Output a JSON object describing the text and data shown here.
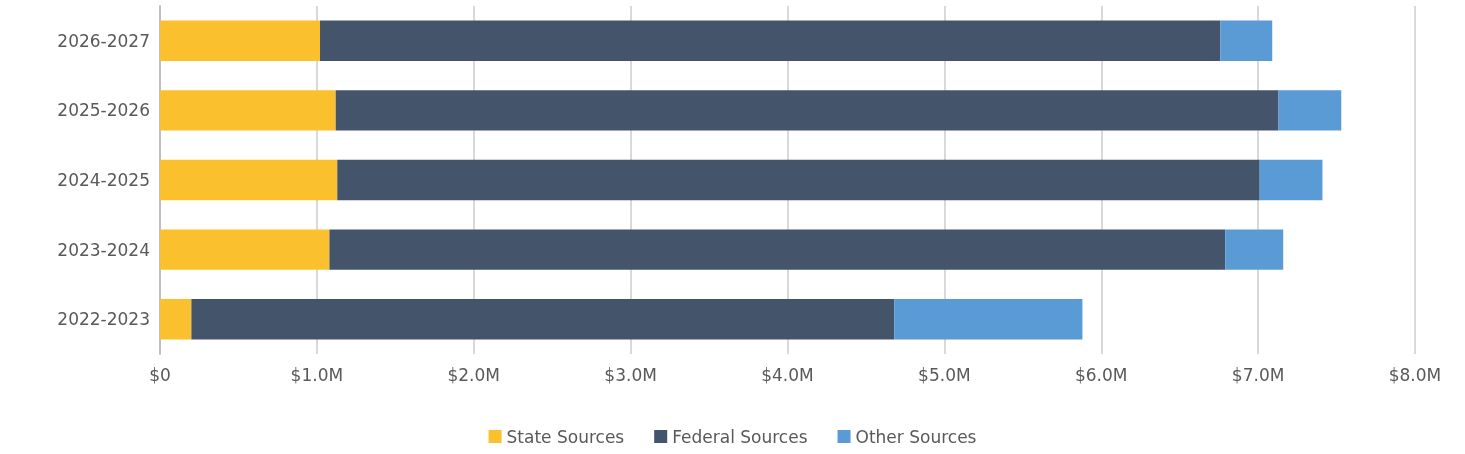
{
  "chart_data": {
    "type": "bar",
    "orientation": "horizontal",
    "stacked": true,
    "categories": [
      "2026-2027",
      "2025-2026",
      "2024-2025",
      "2023-2024",
      "2022-2023"
    ],
    "series": [
      {
        "name": "State Sources",
        "color": "#fbc02d",
        "values": [
          1.02,
          1.12,
          1.13,
          1.08,
          0.2
        ]
      },
      {
        "name": "Federal Sources",
        "color": "#44546a",
        "values": [
          5.74,
          6.01,
          5.88,
          5.71,
          4.48
        ]
      },
      {
        "name": "Other Sources",
        "color": "#5b9bd5",
        "values": [
          0.33,
          0.4,
          0.4,
          0.37,
          1.2
        ]
      }
    ],
    "xlim": [
      0,
      8
    ],
    "xticks": [
      {
        "value": 0,
        "label": "$0"
      },
      {
        "value": 1,
        "label": "$1.0M"
      },
      {
        "value": 2,
        "label": "$2.0M"
      },
      {
        "value": 3,
        "label": "$3.0M"
      },
      {
        "value": 4,
        "label": "$4.0M"
      },
      {
        "value": 5,
        "label": "$5.0M"
      },
      {
        "value": 6,
        "label": "$6.0M"
      },
      {
        "value": 7,
        "label": "$7.0M"
      },
      {
        "value": 8,
        "label": "$8.0M"
      }
    ],
    "grid": "x",
    "legend": "bottom"
  }
}
